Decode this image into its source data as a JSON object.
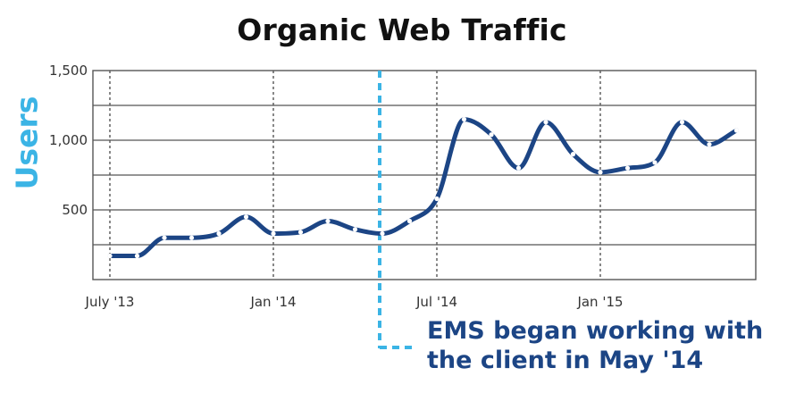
{
  "chart_data": {
    "type": "line",
    "title": "Organic Web Traffic",
    "ylabel": "Users",
    "xlabel": "",
    "ylim": [
      0,
      1500
    ],
    "yticks": [
      {
        "value": 500,
        "label": "500"
      },
      {
        "value": 1000,
        "label": "1,000"
      },
      {
        "value": 1500,
        "label": "1,500"
      }
    ],
    "xticks": [
      {
        "value": "2013-07",
        "label": "July '13"
      },
      {
        "value": "2014-01",
        "label": "Jan '14"
      },
      {
        "value": "2014-07",
        "label": "Jul '14"
      },
      {
        "value": "2015-01",
        "label": "Jan '15"
      }
    ],
    "x": [
      "2013-07",
      "2013-08",
      "2013-09",
      "2013-10",
      "2013-11",
      "2013-12",
      "2014-01",
      "2014-02",
      "2014-03",
      "2014-04",
      "2014-05",
      "2014-06",
      "2014-07",
      "2014-08",
      "2014-09",
      "2014-10",
      "2014-11",
      "2014-12",
      "2015-01",
      "2015-02",
      "2015-03",
      "2015-04",
      "2015-05",
      "2015-06"
    ],
    "series": [
      {
        "values": [
          170,
          170,
          300,
          300,
          330,
          450,
          330,
          340,
          420,
          360,
          330,
          420,
          580,
          1150,
          1040,
          800,
          1130,
          900,
          770,
          800,
          840,
          1130,
          970,
          1070
        ]
      }
    ],
    "grid": true,
    "markers": true,
    "annotation": {
      "x": "2014-05",
      "lines": [
        "EMS began working with",
        "the client in May '14"
      ]
    },
    "colors": {
      "line": "#1c4585",
      "marker": "#ffffff",
      "annotation_line": "#3bb4e5",
      "annotation_text": "#1c4585",
      "ylabel": "#3bb4e5",
      "grid": "#555555",
      "frame": "#555555"
    }
  }
}
